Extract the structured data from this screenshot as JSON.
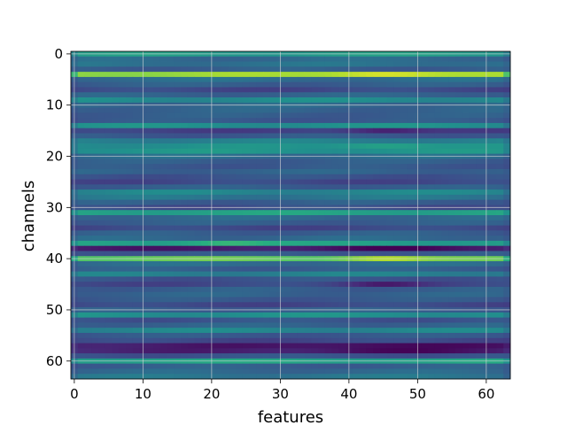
{
  "chart_data": {
    "type": "heatmap",
    "title": "",
    "xlabel": "features",
    "ylabel": "channels",
    "xlim": [
      -0.5,
      63.5
    ],
    "ylim": [
      63.5,
      -0.5
    ],
    "xticks": [
      0,
      10,
      20,
      30,
      40,
      50,
      60
    ],
    "yticks": [
      0,
      10,
      20,
      30,
      40,
      50,
      60
    ],
    "grid": true,
    "colormap": "viridis",
    "n_rows": 64,
    "n_cols": 64,
    "row_levels": [
      0.55,
      0.35,
      0.38,
      0.3,
      0.85,
      0.36,
      0.3,
      0.22,
      0.32,
      0.48,
      0.34,
      0.32,
      0.3,
      0.28,
      0.5,
      0.2,
      0.28,
      0.44,
      0.5,
      0.52,
      0.36,
      0.3,
      0.28,
      0.32,
      0.26,
      0.22,
      0.3,
      0.46,
      0.4,
      0.3,
      0.24,
      0.58,
      0.34,
      0.3,
      0.22,
      0.3,
      0.34,
      0.56,
      0.08,
      0.28,
      0.76,
      0.36,
      0.3,
      0.44,
      0.26,
      0.22,
      0.3,
      0.32,
      0.28,
      0.22,
      0.3,
      0.5,
      0.26,
      0.32,
      0.46,
      0.28,
      0.22,
      0.08,
      0.1,
      0.26,
      0.58,
      0.3,
      0.34,
      0.4
    ],
    "row_bumps": [
      {
        "row": 4,
        "col_center": 45,
        "width": 8,
        "delta": 0.12
      },
      {
        "row": 15,
        "col_center": 45,
        "width": 6,
        "delta": -0.12
      },
      {
        "row": 18,
        "col_center": 45,
        "width": 7,
        "delta": 0.1
      },
      {
        "row": 37,
        "col_center": 22,
        "width": 7,
        "delta": 0.12
      },
      {
        "row": 38,
        "col_center": 45,
        "width": 10,
        "delta": -0.06
      },
      {
        "row": 40,
        "col_center": 45,
        "width": 6,
        "delta": 0.14
      },
      {
        "row": 45,
        "col_center": 45,
        "width": 6,
        "delta": -0.12
      },
      {
        "row": 57,
        "col_center": 45,
        "width": 12,
        "delta": -0.07
      },
      {
        "row": 58,
        "col_center": 45,
        "width": 12,
        "delta": -0.08
      }
    ]
  }
}
